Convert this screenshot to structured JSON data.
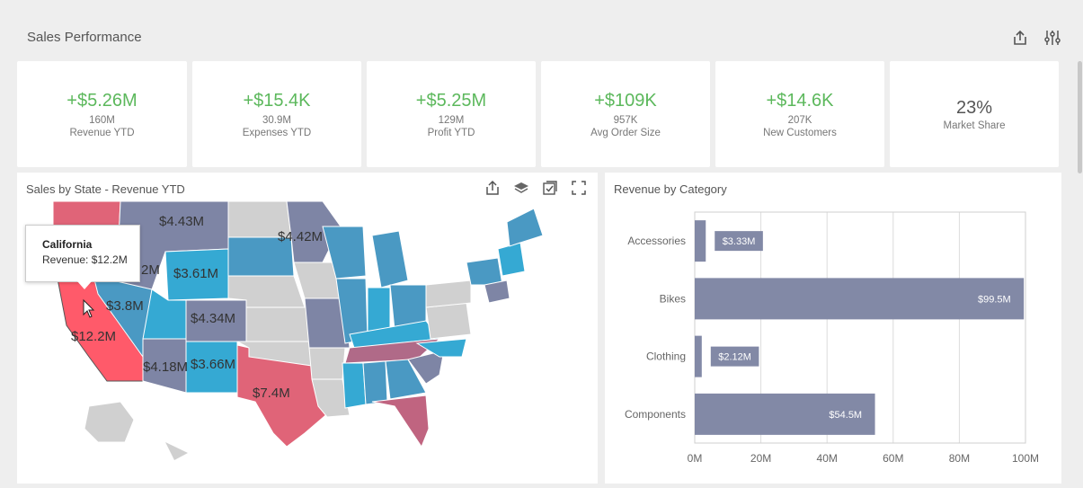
{
  "dashboard": {
    "title": "Sales Performance"
  },
  "kpis": [
    {
      "delta": "+$5.26M",
      "value": "160M",
      "label": "Revenue YTD"
    },
    {
      "delta": "+$15.4K",
      "value": "30.9M",
      "label": "Expenses YTD"
    },
    {
      "delta": "+$5.25M",
      "value": "129M",
      "label": "Profit YTD"
    },
    {
      "delta": "+$109K",
      "value": "957K",
      "label": "Avg Order Size"
    },
    {
      "delta": "+$14.6K",
      "value": "207K",
      "label": "New Customers"
    },
    {
      "delta": "23%",
      "value": "",
      "label": "Market Share"
    }
  ],
  "map_panel": {
    "title": "Sales by State - Revenue YTD",
    "labels": [
      "$4.43M",
      "$4.42M",
      "$3.61M",
      "2M",
      "$3.8M",
      "$4.34M",
      "$12.2M",
      "$4.18M",
      "$3.66M",
      "$7.4M"
    ],
    "tooltip": {
      "state": "California",
      "revenue": "Revenue: $12.2M"
    }
  },
  "category_panel": {
    "title": "Revenue by Category"
  },
  "colors": {
    "positive": "#5cb85c",
    "bar": "#8289a6",
    "map_red": "#e06478",
    "map_blue": "#35a9d3",
    "map_slate": "#7e85a5"
  },
  "chart_data": {
    "type": "bar",
    "orientation": "horizontal",
    "title": "Revenue by Category",
    "categories": [
      "Accessories",
      "Bikes",
      "Clothing",
      "Components"
    ],
    "values": [
      3.33,
      99.5,
      2.12,
      54.5
    ],
    "data_labels": [
      "$3.33M",
      "$99.5M",
      "$2.12M",
      "$54.5M"
    ],
    "xlim": [
      0,
      100
    ],
    "xticks": [
      "0M",
      "20M",
      "40M",
      "60M",
      "80M",
      "100M"
    ],
    "grid": true
  }
}
